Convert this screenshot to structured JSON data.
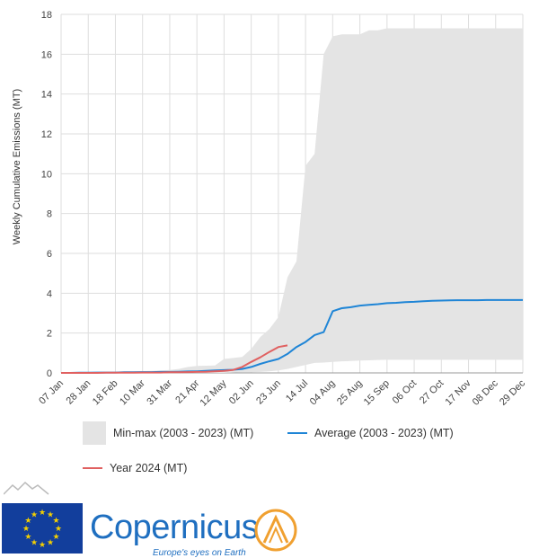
{
  "colors": {
    "band": "#e4e4e4",
    "average": "#1f85d6",
    "year": "#e06060",
    "grid": "#dedede",
    "eu_blue": "#123e9c",
    "eu_star": "#f5d000",
    "copernicus_blue": "#1f6fc0",
    "copernicus_orange": "#f0a030"
  },
  "legend": {
    "band_label": "Min-max (2003 - 2023) (MT)",
    "average_label": "Average (2003 - 2023) (MT)",
    "year_label": "Year 2024 (MT)"
  },
  "footer": {
    "brand_word": "Copernicus",
    "tagline": "Europe's eyes on Earth",
    "icons": [
      "mountain-outline-icon",
      "eu-flag-icon",
      "copernicus-emblem-icon"
    ]
  },
  "chart_data": {
    "type": "area",
    "title": "",
    "xlabel": "",
    "ylabel": "Weekly Cumulative Emissions (MT)",
    "ylim": [
      0,
      18
    ],
    "yticks": [
      0,
      2,
      4,
      6,
      8,
      10,
      12,
      14,
      16,
      18
    ],
    "grid": true,
    "legend_position": "bottom",
    "x_tick_labels": [
      "07 Jan",
      "28 Jan",
      "18 Feb",
      "10 Mar",
      "31 Mar",
      "21 Apr",
      "12 May",
      "02 Jun",
      "23 Jun",
      "14 Jul",
      "04 Aug",
      "25 Aug",
      "15 Sep",
      "06 Oct",
      "27 Oct",
      "17 Nov",
      "08 Dec",
      "29 Dec"
    ],
    "x_weeks": [
      1,
      2,
      3,
      4,
      5,
      6,
      7,
      8,
      9,
      10,
      11,
      12,
      13,
      14,
      15,
      16,
      17,
      18,
      19,
      20,
      21,
      22,
      23,
      24,
      25,
      26,
      27,
      28,
      29,
      30,
      31,
      32,
      33,
      34,
      35,
      36,
      37,
      38,
      39,
      40,
      41,
      42,
      43,
      44,
      45,
      46,
      47,
      48,
      49,
      50,
      51,
      52
    ],
    "series": [
      {
        "name": "Min-max (2003 - 2023) (MT)",
        "kind": "band",
        "min": [
          0,
          0,
          0,
          0,
          0,
          0,
          0,
          0,
          0,
          0,
          0,
          0,
          0,
          0,
          0,
          0,
          0,
          0,
          0,
          0.02,
          0.03,
          0.03,
          0.05,
          0.08,
          0.12,
          0.2,
          0.3,
          0.4,
          0.5,
          0.52,
          0.55,
          0.58,
          0.6,
          0.62,
          0.63,
          0.65,
          0.66,
          0.66,
          0.66,
          0.66,
          0.66,
          0.66,
          0.66,
          0.66,
          0.66,
          0.66,
          0.66,
          0.66,
          0.66,
          0.66,
          0.66,
          0.66
        ],
        "max": [
          0,
          0.01,
          0.02,
          0.03,
          0.04,
          0.05,
          0.06,
          0.07,
          0.08,
          0.09,
          0.1,
          0.12,
          0.15,
          0.2,
          0.3,
          0.35,
          0.36,
          0.37,
          0.7,
          0.75,
          0.8,
          1.2,
          1.8,
          2.2,
          2.8,
          4.8,
          5.6,
          10.4,
          11,
          16,
          16.9,
          17,
          17,
          17,
          17.2,
          17.2,
          17.3,
          17.3,
          17.3,
          17.3,
          17.3,
          17.3,
          17.3,
          17.3,
          17.3,
          17.3,
          17.3,
          17.3,
          17.3,
          17.3,
          17.3,
          17.3
        ]
      },
      {
        "name": "Average (2003 - 2023) (MT)",
        "kind": "line",
        "values": [
          0,
          0,
          0.01,
          0.01,
          0.02,
          0.02,
          0.02,
          0.03,
          0.03,
          0.04,
          0.04,
          0.05,
          0.05,
          0.06,
          0.07,
          0.08,
          0.1,
          0.12,
          0.14,
          0.16,
          0.2,
          0.3,
          0.45,
          0.58,
          0.7,
          0.95,
          1.3,
          1.55,
          1.9,
          2.05,
          3.1,
          3.25,
          3.3,
          3.38,
          3.42,
          3.45,
          3.5,
          3.52,
          3.55,
          3.57,
          3.6,
          3.62,
          3.63,
          3.64,
          3.65,
          3.65,
          3.65,
          3.66,
          3.66,
          3.66,
          3.66,
          3.66
        ]
      },
      {
        "name": "Year 2024 (MT)",
        "kind": "line",
        "values": [
          0,
          0,
          0,
          0,
          0,
          0.01,
          0.01,
          0.01,
          0.01,
          0.02,
          0.02,
          0.02,
          0.03,
          0.03,
          0.04,
          0.05,
          0.06,
          0.08,
          0.1,
          0.15,
          0.3,
          0.55,
          0.78,
          1.05,
          1.3,
          1.38
        ]
      }
    ]
  }
}
